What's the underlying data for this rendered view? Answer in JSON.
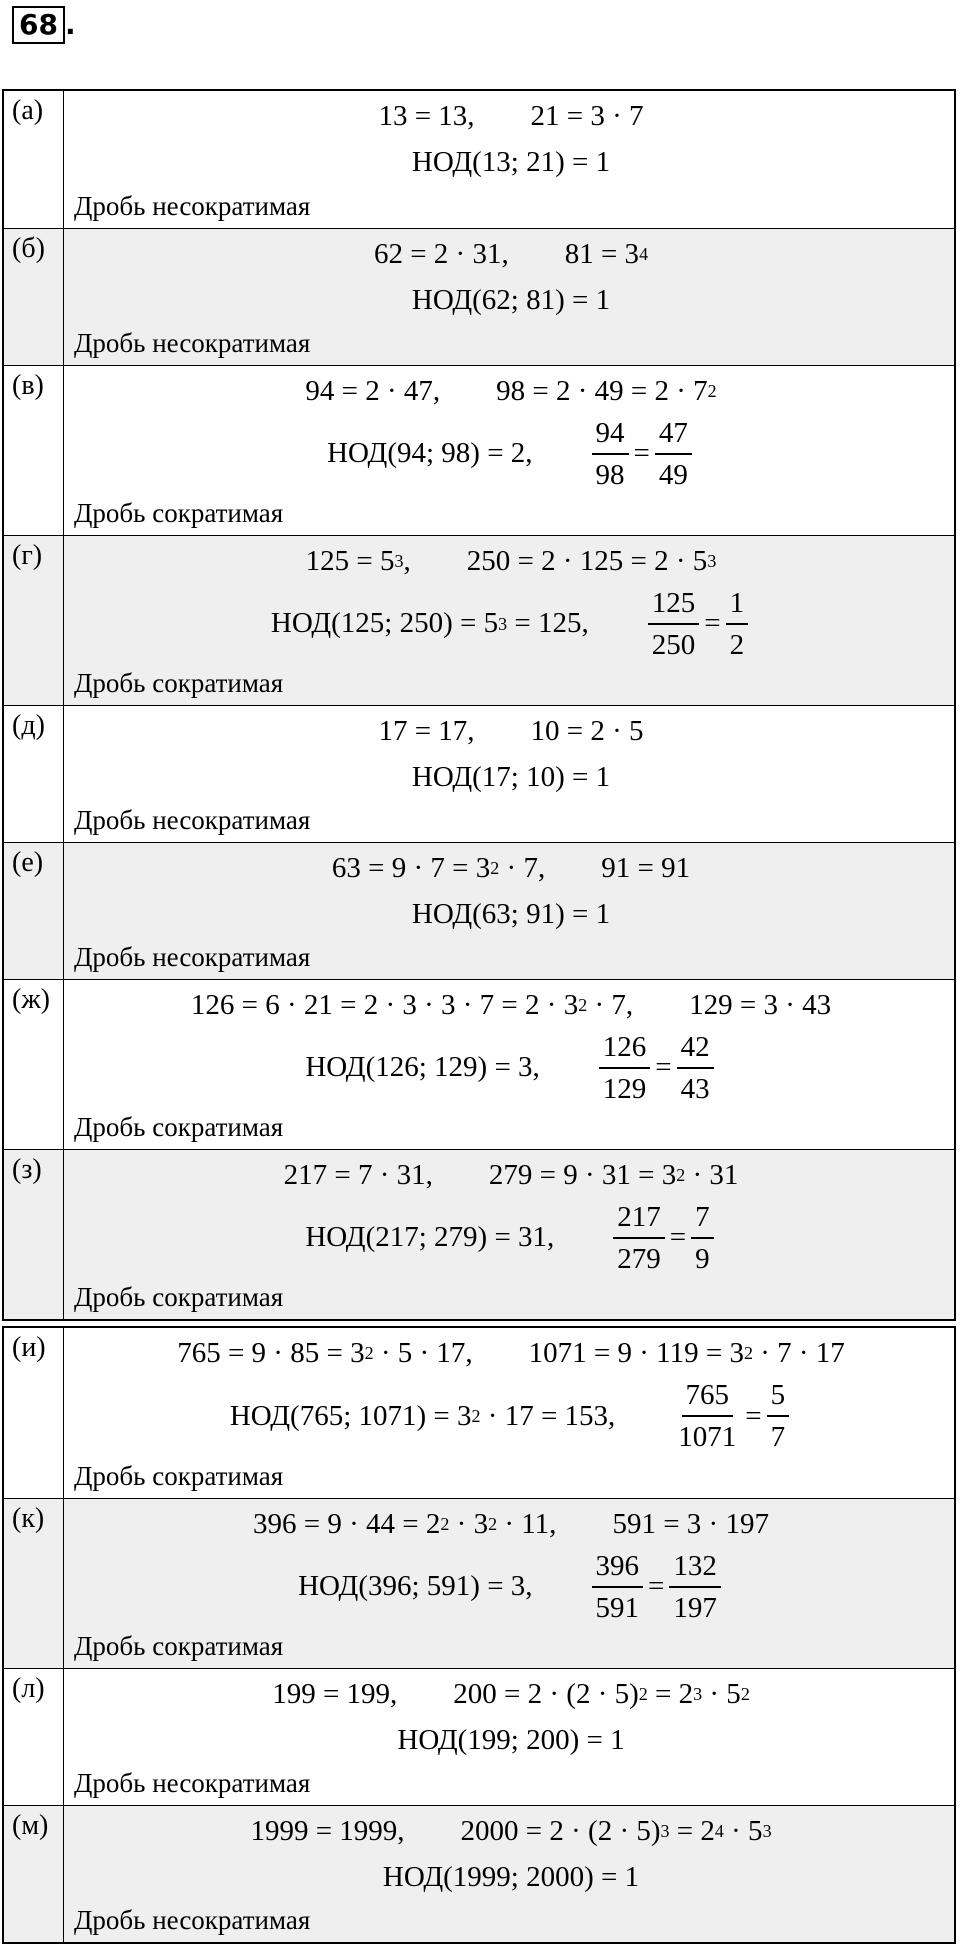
{
  "header": {
    "number": "68",
    "dot": "."
  },
  "tables": [
    {
      "rows": [
        {
          "label": "(а)",
          "line1": [
            [
              "13 = 13,"
            ],
            [
              "21 = 3 · 7"
            ]
          ],
          "line2": [
            [
              "НОД(13; 21) = 1"
            ]
          ],
          "note": "Дробь несократимая"
        },
        {
          "label": "(б)",
          "line1": [
            [
              "62 = 2 · 31,"
            ],
            [
              "81 = 3",
              {
                "sup": "4"
              }
            ]
          ],
          "line2": [
            [
              "НОД(62; 81) = 1"
            ]
          ],
          "note": "Дробь несократимая"
        },
        {
          "label": "(в)",
          "line1": [
            [
              "94 = 2 · 47,"
            ],
            [
              "98 = 2 · 49 = 2 · 7",
              {
                "sup": "2"
              }
            ]
          ],
          "line2": [
            [
              "НОД(94; 98) = 2,"
            ],
            [
              {
                "num": "94",
                "den": "98"
              },
              "=",
              {
                "num": "47",
                "den": "49"
              }
            ]
          ],
          "note": "Дробь сократимая"
        },
        {
          "label": "(г)",
          "line1": [
            [
              "125 = 5",
              {
                "sup": "3"
              },
              ","
            ],
            [
              "250 = 2 · 125 = 2 · 5",
              {
                "sup": "3"
              }
            ]
          ],
          "line2": [
            [
              "НОД(125; 250) = 5",
              {
                "sup": "3"
              },
              " = 125,"
            ],
            [
              {
                "num": "125",
                "den": "250"
              },
              "=",
              {
                "num": "1",
                "den": "2"
              }
            ]
          ],
          "note": "Дробь сократимая"
        },
        {
          "label": "(д)",
          "line1": [
            [
              "17 = 17,"
            ],
            [
              "10 = 2 · 5"
            ]
          ],
          "line2": [
            [
              "НОД(17; 10) = 1"
            ]
          ],
          "note": "Дробь несократимая"
        },
        {
          "label": "(е)",
          "line1": [
            [
              "63 = 9 · 7 = 3",
              {
                "sup": "2"
              },
              " · 7,"
            ],
            [
              "91 = 91"
            ]
          ],
          "line2": [
            [
              "НОД(63; 91) = 1"
            ]
          ],
          "note": "Дробь несократимая"
        },
        {
          "label": "(ж)",
          "line1": [
            [
              "126 = 6 · 21 = 2 · 3 · 3 · 7 = 2 · 3",
              {
                "sup": "2"
              },
              " · 7,"
            ],
            [
              "129 = 3 · 43"
            ]
          ],
          "line2": [
            [
              "НОД(126; 129) = 3,"
            ],
            [
              {
                "num": "126",
                "den": "129"
              },
              "=",
              {
                "num": "42",
                "den": "43"
              }
            ]
          ],
          "note": "Дробь сократимая"
        },
        {
          "label": "(з)",
          "line1": [
            [
              "217 = 7 · 31,"
            ],
            [
              "279 = 9 · 31 = 3",
              {
                "sup": "2"
              },
              " · 31"
            ]
          ],
          "line2": [
            [
              "НОД(217; 279) = 31,"
            ],
            [
              {
                "num": "217",
                "den": "279"
              },
              "=",
              {
                "num": "7",
                "den": "9"
              }
            ]
          ],
          "note": "Дробь сократимая"
        }
      ]
    },
    {
      "rows": [
        {
          "label": "(и)",
          "line1": [
            [
              "765 = 9 · 85 = 3",
              {
                "sup": "2"
              },
              " · 5 · 17,"
            ],
            [
              "1071 = 9 · 119 = 3",
              {
                "sup": "2"
              },
              " · 7 · 17"
            ]
          ],
          "line2": [
            [
              "НОД(765; 1071) = 3",
              {
                "sup": "2"
              },
              " · 17 = 153,"
            ],
            [
              {
                "num": "765",
                "den": "1071"
              },
              "=",
              {
                "num": "5",
                "den": "7"
              }
            ]
          ],
          "note": "Дробь сократимая"
        },
        {
          "label": "(к)",
          "line1": [
            [
              "396 = 9 · 44 = 2",
              {
                "sup": "2"
              },
              " · 3",
              {
                "sup": "2"
              },
              " · 11,"
            ],
            [
              "591 = 3 · 197"
            ]
          ],
          "line2": [
            [
              "НОД(396; 591) = 3,"
            ],
            [
              {
                "num": "396",
                "den": "591"
              },
              "=",
              {
                "num": "132",
                "den": "197"
              }
            ]
          ],
          "note": "Дробь сократимая"
        },
        {
          "label": "(л)",
          "line1": [
            [
              "199 = 199,"
            ],
            [
              "200 = 2 · (2 · 5)",
              {
                "sup": "2"
              },
              " = 2",
              {
                "sup": "3"
              },
              " · 5",
              {
                "sup": "2"
              }
            ]
          ],
          "line2": [
            [
              "НОД(199; 200) = 1"
            ]
          ],
          "note": "Дробь несократимая"
        },
        {
          "label": "(м)",
          "line1": [
            [
              "1999 = 1999,"
            ],
            [
              "2000 = 2 · (2 · 5)",
              {
                "sup": "3"
              },
              " = 2",
              {
                "sup": "4"
              },
              " · 5",
              {
                "sup": "3"
              }
            ]
          ],
          "line2": [
            [
              "НОД(1999; 2000) = 1"
            ]
          ],
          "note": "Дробь несократимая"
        }
      ]
    }
  ]
}
